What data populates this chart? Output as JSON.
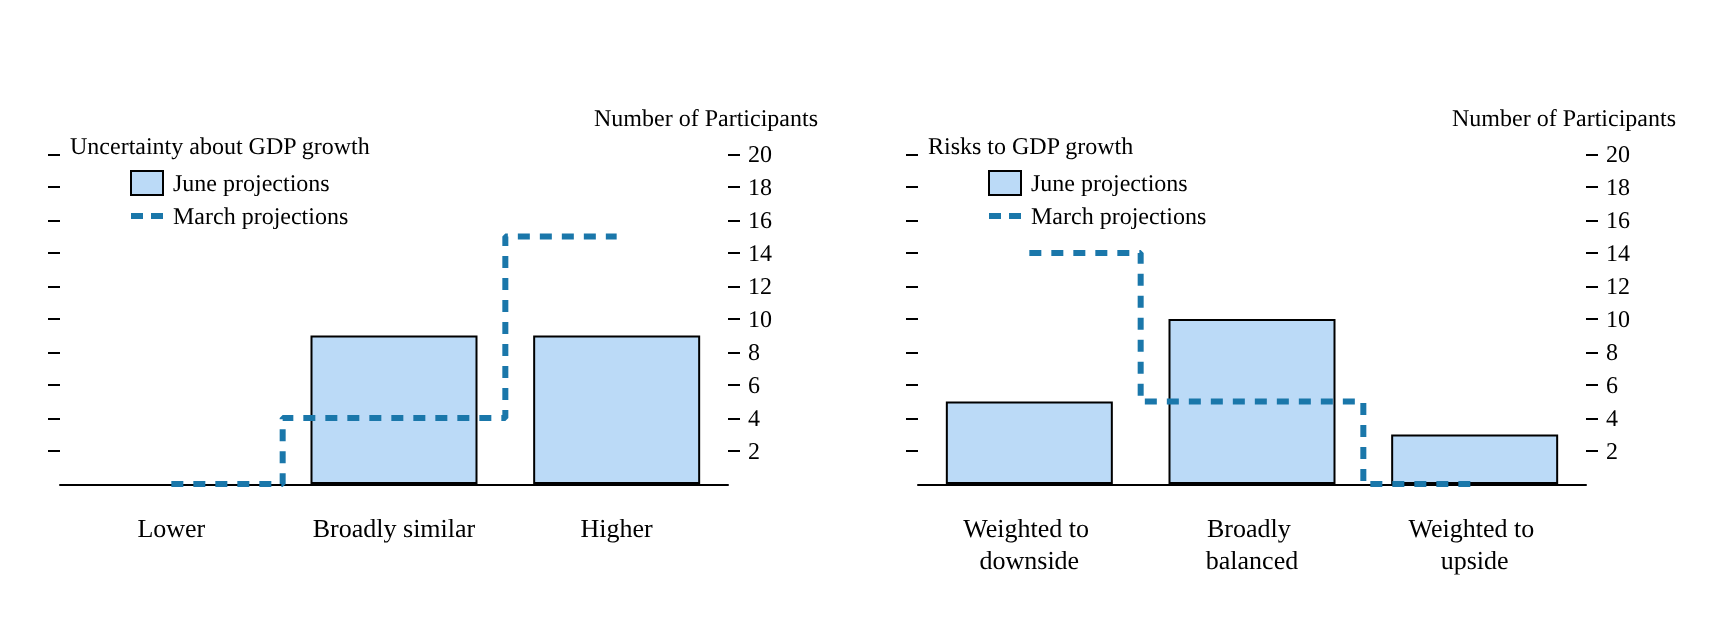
{
  "chart_data": [
    {
      "type": "bar",
      "title": "Uncertainty about GDP growth",
      "ylabel": "Number of Participants",
      "categories": [
        "Lower",
        "Broadly similar",
        "Higher"
      ],
      "series": [
        {
          "name": "June projections",
          "color": "#bbdaf7",
          "values": [
            0,
            9,
            9
          ]
        },
        {
          "name": "March projections",
          "type": "step",
          "color": "#1a77aa",
          "line_style": "dashed",
          "values": [
            0,
            4,
            15
          ]
        }
      ],
      "ylim": [
        0,
        20
      ],
      "yticks": [
        2,
        4,
        6,
        8,
        10,
        12,
        14,
        16,
        18,
        20
      ],
      "grid": false,
      "legend": "top left"
    },
    {
      "type": "bar",
      "title": "Risks to GDP growth",
      "ylabel": "Number of Participants",
      "categories": [
        "Weighted to downside",
        "Broadly balanced",
        "Weighted to upside"
      ],
      "series": [
        {
          "name": "June projections",
          "color": "#bbdaf7",
          "values": [
            5,
            10,
            3
          ]
        },
        {
          "name": "March projections",
          "type": "step",
          "color": "#1a77aa",
          "line_style": "dashed",
          "values": [
            14,
            5,
            0
          ]
        }
      ],
      "ylim": [
        0,
        20
      ],
      "yticks": [
        2,
        4,
        6,
        8,
        10,
        12,
        14,
        16,
        18,
        20
      ],
      "grid": false,
      "legend": "top left"
    }
  ]
}
